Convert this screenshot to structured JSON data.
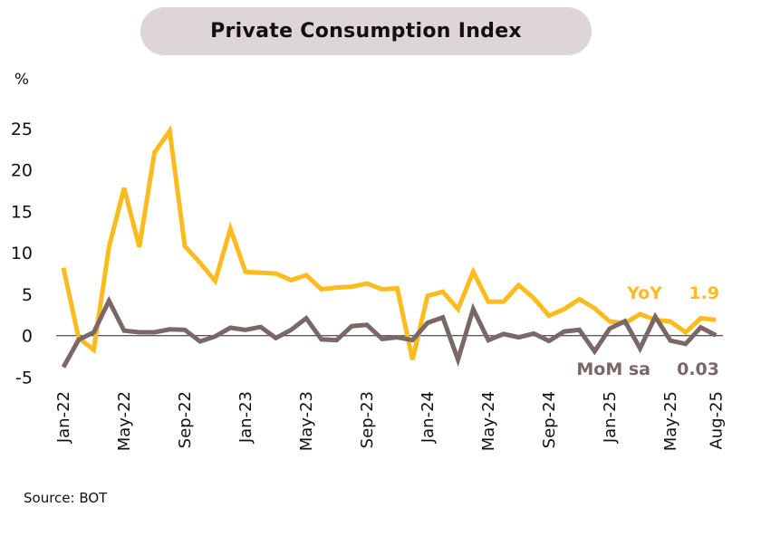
{
  "chart_data": {
    "type": "line",
    "title": "Private Consumption Index",
    "ylabel": "%",
    "xlabel": "",
    "ylim": [
      -5,
      25
    ],
    "yticks": [
      -5,
      0,
      5,
      10,
      15,
      20,
      25
    ],
    "grid": false,
    "zero_line": true,
    "x": [
      "Jan-22",
      "Feb-22",
      "Mar-22",
      "Apr-22",
      "May-22",
      "Jun-22",
      "Jul-22",
      "Aug-22",
      "Sep-22",
      "Oct-22",
      "Nov-22",
      "Dec-22",
      "Jan-23",
      "Feb-23",
      "Mar-23",
      "Apr-23",
      "May-23",
      "Jun-23",
      "Jul-23",
      "Aug-23",
      "Sep-23",
      "Oct-23",
      "Nov-23",
      "Dec-23",
      "Jan-24",
      "Feb-24",
      "Mar-24",
      "Apr-24",
      "May-24",
      "Jun-24",
      "Jul-24",
      "Aug-24",
      "Sep-24",
      "Oct-24",
      "Nov-24",
      "Dec-24",
      "Jan-25",
      "Feb-25",
      "Mar-25",
      "Apr-25",
      "May-25",
      "Jun-25",
      "Jul-25",
      "Aug-25"
    ],
    "xtick_labels": [
      "Jan-22",
      "May-22",
      "Sep-22",
      "Jan-23",
      "May-23",
      "Sep-23",
      "Jan-24",
      "May-24",
      "Sep-24",
      "Jan-25",
      "May-25",
      "Aug-25"
    ],
    "series": [
      {
        "name": "YoY",
        "color": "#fdbb1e",
        "last_value_label": "1.9",
        "values": [
          8.2,
          -0.3,
          -1.7,
          10.7,
          17.8,
          10.7,
          22.1,
          24.7,
          10.8,
          8.8,
          6.6,
          12.9,
          7.7,
          7.6,
          7.5,
          6.7,
          7.3,
          5.6,
          5.8,
          5.9,
          6.3,
          5.6,
          5.7,
          -2.9,
          4.8,
          5.3,
          3.2,
          7.7,
          4.1,
          4.1,
          6.1,
          4.5,
          2.4,
          3.2,
          4.4,
          3.3,
          1.7,
          1.5,
          2.6,
          1.9,
          1.7,
          0.4,
          2.1,
          1.9
        ]
      },
      {
        "name": "MoM sa",
        "color": "#7a6767",
        "last_value_label": "0.03",
        "values": [
          -3.8,
          -0.5,
          0.4,
          4.2,
          0.6,
          0.4,
          0.4,
          0.75,
          0.7,
          -0.7,
          -0.1,
          0.95,
          0.7,
          1.05,
          -0.3,
          0.7,
          2.1,
          -0.45,
          -0.55,
          1.15,
          1.3,
          -0.4,
          -0.2,
          -0.55,
          1.55,
          2.2,
          -2.9,
          3.2,
          -0.55,
          0.2,
          -0.2,
          0.25,
          -0.65,
          0.5,
          0.7,
          -1.9,
          0.85,
          1.75,
          -1.55,
          2.3,
          -0.6,
          -1.0,
          1.0,
          0.03
        ]
      }
    ],
    "legend": "inline-right"
  },
  "source": "Source: BOT"
}
